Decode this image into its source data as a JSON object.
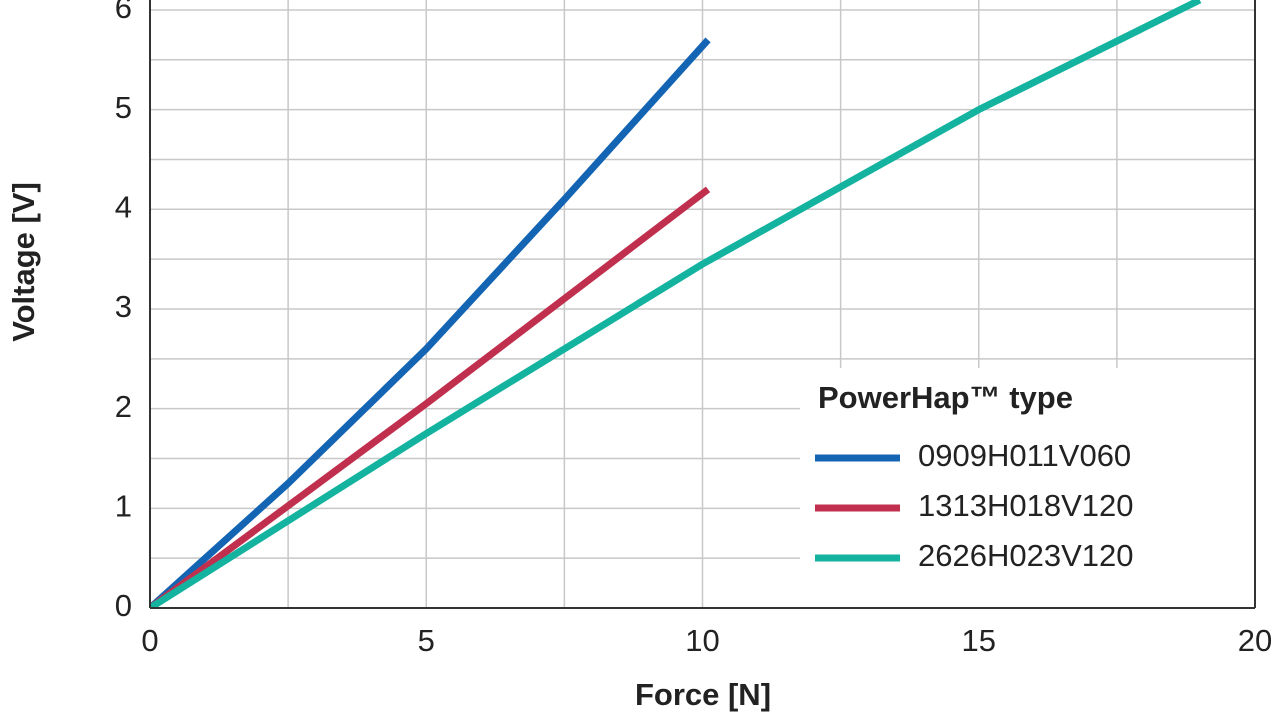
{
  "chart_data": {
    "type": "line",
    "x_label": "Force [N]",
    "y_label": "Voltage [V]",
    "legend_title": "PowerHap™ type",
    "legend": "lower right",
    "grid": true,
    "xlim": [
      0,
      20
    ],
    "ylim": [
      0,
      6.1
    ],
    "xticks": [
      0,
      5,
      10,
      15,
      20
    ],
    "yticks": [
      0,
      1,
      2,
      3,
      4,
      5,
      6
    ],
    "x_minor_ticks": [
      2.5,
      7.5,
      12.5,
      17.5
    ],
    "y_minor_ticks": [
      0.5,
      1.5,
      2.5,
      3.5,
      4.5,
      5.5
    ],
    "series": [
      {
        "name": "0909H011V060",
        "color": "#1464b4",
        "x": [
          0,
          2.5,
          5,
          7.5,
          10.1
        ],
        "values": [
          0,
          1.25,
          2.6,
          4.1,
          5.7
        ]
      },
      {
        "name": "1313H018V120",
        "color": "#c0304e",
        "x": [
          0,
          5,
          10.1
        ],
        "values": [
          0,
          2.05,
          4.2
        ]
      },
      {
        "name": "2626H023V120",
        "color": "#13b3a0",
        "x": [
          0,
          5,
          10,
          15,
          19
        ],
        "values": [
          0,
          1.75,
          3.45,
          5.0,
          6.1
        ]
      }
    ]
  }
}
